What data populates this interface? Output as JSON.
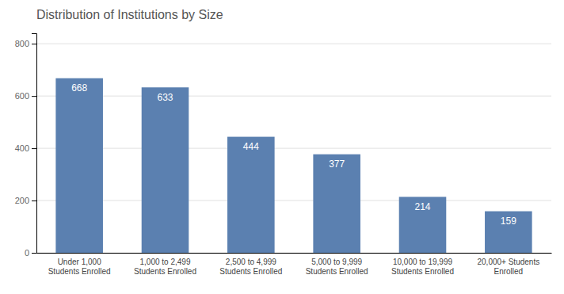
{
  "chart_data": {
    "type": "bar",
    "title": "Distribution of Institutions by Size",
    "categories": [
      "Under 1,000\nStudents Enrolled",
      "1,000 to 2,499\nStudents Enrolled",
      "2,500 to 4,999\nStudents Enrolled",
      "5,000 to 9,999\nStudents Enrolled",
      "10,000 to 19,999\nStudents Enrolled",
      "20,000+ Students\nEnrolled"
    ],
    "values": [
      668,
      633,
      444,
      377,
      214,
      159
    ],
    "color": "#5b80b0",
    "ylim": [
      0,
      840
    ],
    "yticks": [
      0,
      200,
      400,
      600,
      800
    ],
    "grid": true,
    "data_labels": true
  }
}
